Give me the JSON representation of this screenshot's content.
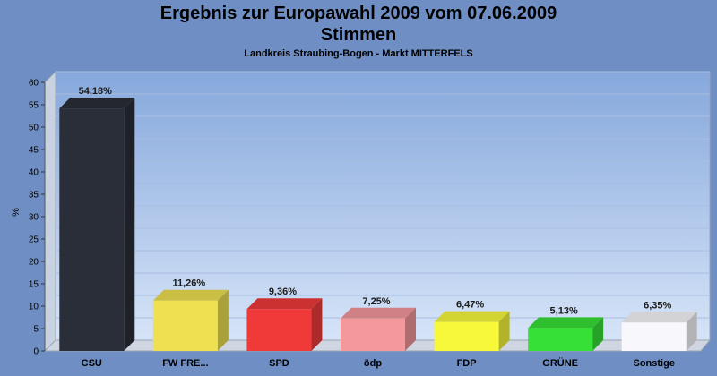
{
  "chart_data": {
    "type": "bar",
    "title": "Ergebnis zur Europawahl 2009 vom 07.06.2009",
    "subtitle": "Stimmen",
    "caption": "Landkreis Straubing-Bogen - Markt MITTERFELS",
    "ylabel": "%",
    "ylim": [
      0,
      60
    ],
    "yticks": [
      0,
      5,
      10,
      15,
      20,
      25,
      30,
      35,
      40,
      45,
      50,
      55,
      60
    ],
    "categories": [
      "CSU",
      "FW FRE...",
      "SPD",
      "ödp",
      "FDP",
      "GRÜNE",
      "Sonstige"
    ],
    "values": [
      54.18,
      11.26,
      9.36,
      7.25,
      6.47,
      5.13,
      6.35
    ],
    "value_labels": [
      "54,18%",
      "11,26%",
      "9,36%",
      "7,25%",
      "6,47%",
      "5,13%",
      "6,35%"
    ],
    "colors": [
      "#2a2e38",
      "#eee050",
      "#f03a3a",
      "#f4989c",
      "#f8f83a",
      "#36e036",
      "#f8f8fc"
    ],
    "grid": true,
    "legend": "none"
  }
}
